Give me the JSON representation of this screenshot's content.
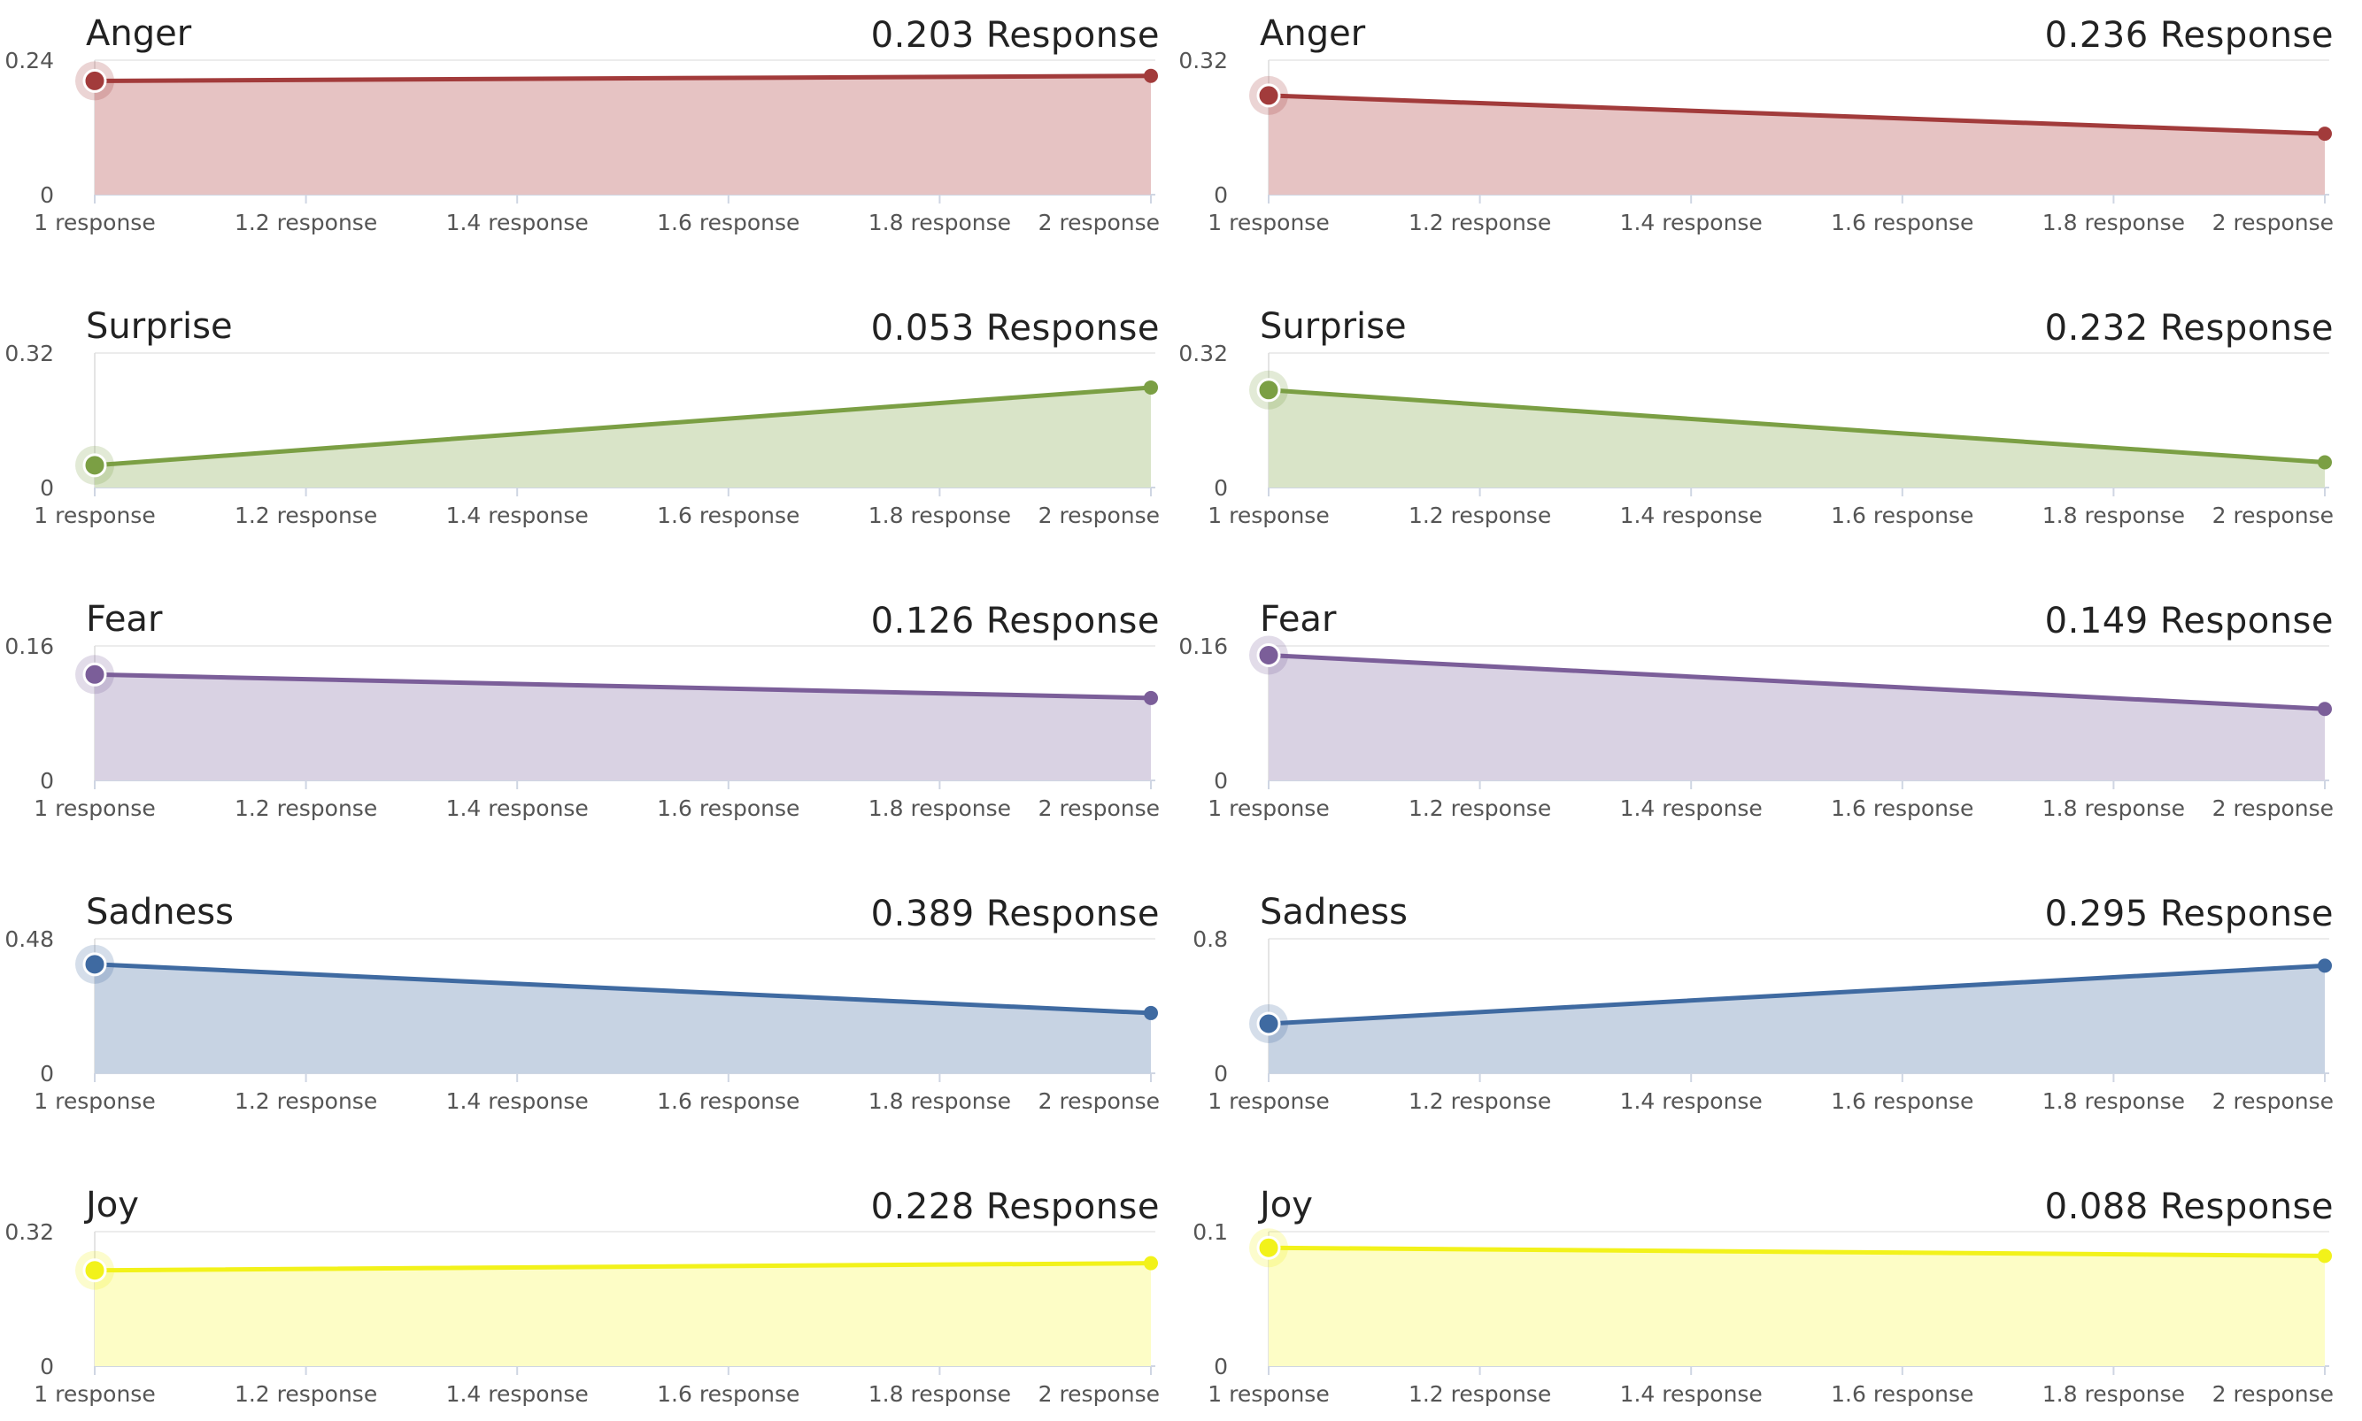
{
  "grid": {
    "rows": 5,
    "cols": 2
  },
  "x_ticks": [
    "1 response",
    "1.2 response",
    "1.4 response",
    "1.6 response",
    "1.8 response",
    "2 response"
  ],
  "chart_data": [
    {
      "type": "area",
      "title": "Anger",
      "value_label": "0.203 Response",
      "color": "#a23b3b",
      "fill": "#e6c3c3",
      "x": [
        1,
        2
      ],
      "y": [
        0.203,
        0.212
      ],
      "ylim": [
        0,
        0.24
      ],
      "yticks": [
        "0.24",
        "0"
      ],
      "grid": true
    },
    {
      "type": "area",
      "title": "Anger",
      "value_label": "0.236 Response",
      "color": "#a23b3b",
      "fill": "#e6c3c3",
      "x": [
        1,
        2
      ],
      "y": [
        0.236,
        0.145
      ],
      "ylim": [
        0,
        0.32
      ],
      "yticks": [
        "0.32",
        "0"
      ],
      "grid": true
    },
    {
      "type": "area",
      "title": "Surprise",
      "value_label": "0.053 Response",
      "color": "#7b9f44",
      "fill": "#d9e4c8",
      "x": [
        1,
        2
      ],
      "y": [
        0.053,
        0.238
      ],
      "ylim": [
        0,
        0.32
      ],
      "yticks": [
        "0.32",
        "0"
      ],
      "grid": true
    },
    {
      "type": "area",
      "title": "Surprise",
      "value_label": "0.232 Response",
      "color": "#7b9f44",
      "fill": "#d9e4c8",
      "x": [
        1,
        2
      ],
      "y": [
        0.232,
        0.06
      ],
      "ylim": [
        0,
        0.32
      ],
      "yticks": [
        "0.32",
        "0"
      ],
      "grid": true
    },
    {
      "type": "area",
      "title": "Fear",
      "value_label": "0.126 Response",
      "color": "#7b5e99",
      "fill": "#d9d2e3",
      "x": [
        1,
        2
      ],
      "y": [
        0.126,
        0.098
      ],
      "ylim": [
        0,
        0.16
      ],
      "yticks": [
        "0.16",
        "0"
      ],
      "grid": true
    },
    {
      "type": "area",
      "title": "Fear",
      "value_label": "0.149 Response",
      "color": "#7b5e99",
      "fill": "#d9d2e3",
      "x": [
        1,
        2
      ],
      "y": [
        0.149,
        0.085
      ],
      "ylim": [
        0,
        0.16
      ],
      "yticks": [
        "0.16",
        "0"
      ],
      "grid": true
    },
    {
      "type": "area",
      "title": "Sadness",
      "value_label": "0.389 Response",
      "color": "#3f6aa1",
      "fill": "#c7d3e3",
      "x": [
        1,
        2
      ],
      "y": [
        0.389,
        0.215
      ],
      "ylim": [
        0,
        0.48
      ],
      "yticks": [
        "0.48",
        "0"
      ],
      "grid": true
    },
    {
      "type": "area",
      "title": "Sadness",
      "value_label": "0.295 Response",
      "color": "#3f6aa1",
      "fill": "#c7d3e3",
      "x": [
        1,
        2
      ],
      "y": [
        0.295,
        0.64
      ],
      "ylim": [
        0,
        0.8
      ],
      "yticks": [
        "0.8",
        "0"
      ],
      "grid": true
    },
    {
      "type": "area",
      "title": "Joy",
      "value_label": "0.228 Response",
      "color": "#f2f21a",
      "fill": "#fdfdc6",
      "x": [
        1,
        2
      ],
      "y": [
        0.228,
        0.245
      ],
      "ylim": [
        0,
        0.32
      ],
      "yticks": [
        "0.32",
        "0"
      ],
      "grid": true
    },
    {
      "type": "area",
      "title": "Joy",
      "value_label": "0.088 Response",
      "color": "#f2f21a",
      "fill": "#fdfdc6",
      "x": [
        1,
        2
      ],
      "y": [
        0.088,
        0.082
      ],
      "ylim": [
        0,
        0.1
      ],
      "yticks": [
        "0.1",
        "0"
      ],
      "grid": true
    }
  ]
}
